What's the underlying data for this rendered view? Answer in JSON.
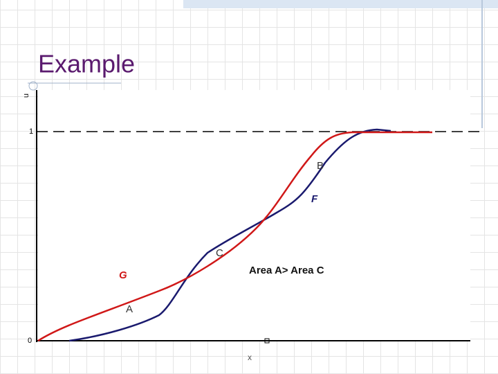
{
  "header": {
    "title": "Example"
  },
  "axes": {
    "y_label": "u",
    "x_label": "x",
    "y_top": "1",
    "y_bottom": "0"
  },
  "curves": {
    "blue": "F",
    "red": "G"
  },
  "regions": {
    "a": "A",
    "b": "B",
    "c": "C"
  },
  "note": "Area A> Area C"
}
